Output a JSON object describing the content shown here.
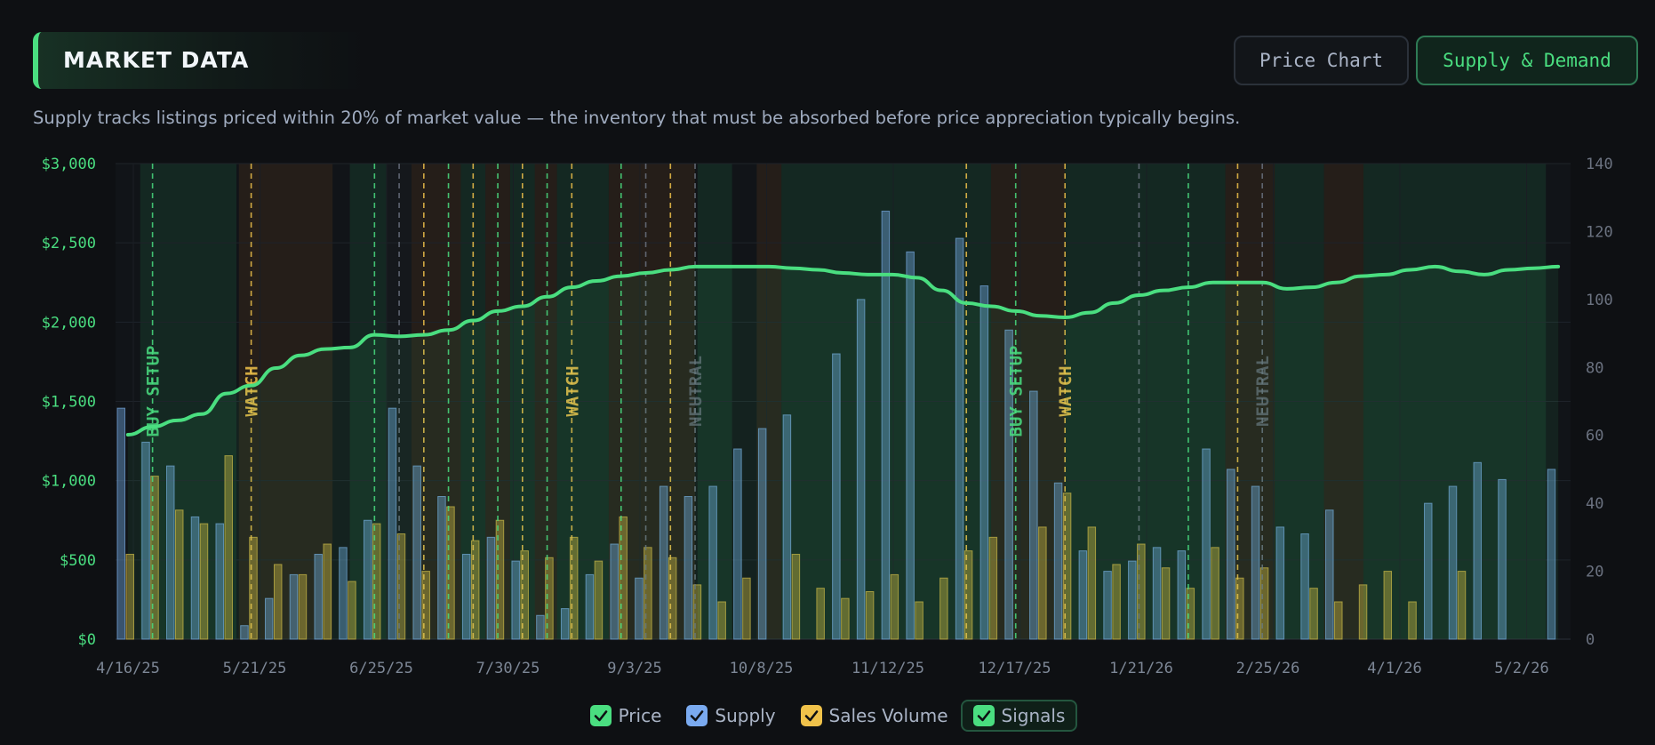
{
  "header": {
    "title": "MARKET DATA",
    "tabs": [
      {
        "label": "Price Chart",
        "active": false
      },
      {
        "label": "Supply & Demand",
        "active": true
      }
    ]
  },
  "description": "Supply tracks listings priced within 20% of market value — the inventory that must be absorbed before price appreciation typically begins.",
  "colors": {
    "price": "#4ade80",
    "supply": "#6aa0d8",
    "sales_volume": "#e8c040",
    "signal_buy": "#4ade80",
    "signal_watch": "#f0b429",
    "signal_neutral": "#6b7280",
    "background": "#0e1013"
  },
  "legend": {
    "items": [
      {
        "label": "Price",
        "checked": true,
        "icon": "check-icon"
      },
      {
        "label": "Supply",
        "checked": true,
        "icon": "check-icon"
      },
      {
        "label": "Sales Volume",
        "checked": true,
        "icon": "check-icon"
      },
      {
        "label": "Signals",
        "checked": true,
        "icon": "check-icon"
      }
    ]
  },
  "chart_data": {
    "type": "bar",
    "grid": true,
    "x_start": "4/16/25",
    "x_step_days": 7,
    "x_tick_labels": [
      "4/16/25",
      "5/21/25",
      "6/25/25",
      "7/30/25",
      "9/3/25",
      "10/8/25",
      "11/12/25",
      "12/17/25",
      "1/21/26",
      "2/25/26",
      "4/1/26",
      "5/2/26"
    ],
    "y_left": {
      "ticks": [
        "$0",
        "$500",
        "$1,000",
        "$1,500",
        "$2,000",
        "$2,500",
        "$3,000"
      ],
      "range": [
        0,
        3000
      ]
    },
    "y_right": {
      "ticks": [
        "0",
        "20",
        "40",
        "60",
        "80",
        "100",
        "120",
        "140"
      ],
      "range": [
        0,
        140
      ]
    },
    "series": [
      {
        "name": "Price",
        "type": "line",
        "axis": "left",
        "values": [
          1290,
          1340,
          1380,
          1420,
          1550,
          1600,
          1710,
          1790,
          1830,
          1840,
          1920,
          1910,
          1920,
          1950,
          2010,
          2070,
          2100,
          2160,
          2220,
          2260,
          2290,
          2310,
          2330,
          2350,
          2350,
          2350,
          2350,
          2340,
          2330,
          2310,
          2300,
          2300,
          2280,
          2200,
          2120,
          2100,
          2070,
          2040,
          2030,
          2060,
          2120,
          2170,
          2200,
          2220,
          2250,
          2250,
          2250,
          2210,
          2220,
          2250,
          2290,
          2300,
          2330,
          2350,
          2320,
          2300,
          2330,
          2340,
          2350
        ]
      },
      {
        "name": "Supply",
        "type": "bar",
        "axis": "right",
        "values": [
          68,
          58,
          51,
          36,
          34,
          4,
          12,
          19,
          25,
          27,
          35,
          68,
          51,
          42,
          25,
          30,
          23,
          7,
          9,
          19,
          28,
          18,
          45,
          42,
          45,
          56,
          62,
          66,
          null,
          84,
          100,
          126,
          114,
          null,
          118,
          104,
          91,
          73,
          46,
          26,
          20,
          23,
          27,
          26,
          56,
          50,
          45,
          33,
          31,
          38,
          null,
          null,
          null,
          40,
          45,
          52,
          47,
          null,
          50
        ]
      },
      {
        "name": "Sales Volume",
        "type": "bar",
        "axis": "right",
        "values": [
          25,
          48,
          38,
          34,
          54,
          30,
          22,
          19,
          28,
          17,
          34,
          31,
          20,
          39,
          29,
          35,
          26,
          24,
          30,
          23,
          36,
          27,
          24,
          16,
          11,
          18,
          null,
          25,
          15,
          12,
          14,
          19,
          11,
          18,
          26,
          30,
          null,
          33,
          43,
          33,
          22,
          28,
          21,
          15,
          27,
          18,
          21,
          null,
          15,
          11,
          16,
          20,
          11,
          null,
          20,
          null,
          null,
          null,
          null
        ]
      }
    ],
    "signals": [
      {
        "type": "buy",
        "label": "BUY SETUP"
      },
      {
        "type": "watch",
        "label": "WATCH"
      },
      {
        "type": "buy",
        "label": ""
      },
      {
        "type": "neutral",
        "label": ""
      },
      {
        "type": "watch",
        "label": ""
      },
      {
        "type": "buy",
        "label": ""
      },
      {
        "type": "watch",
        "label": ""
      },
      {
        "type": "buy",
        "label": ""
      },
      {
        "type": "watch",
        "label": ""
      },
      {
        "type": "buy",
        "label": ""
      },
      {
        "type": "watch",
        "label": "WATCH"
      },
      {
        "type": "buy",
        "label": ""
      },
      {
        "type": "neutral",
        "label": ""
      },
      {
        "type": "watch",
        "label": ""
      },
      {
        "type": "neutral",
        "label": "NEUTRAL"
      },
      {
        "type": "watch",
        "label": ""
      },
      {
        "type": "buy",
        "label": "BUY SETUP"
      },
      {
        "type": "watch",
        "label": "WATCH"
      },
      {
        "type": "neutral",
        "label": ""
      },
      {
        "type": "buy",
        "label": ""
      },
      {
        "type": "watch",
        "label": ""
      },
      {
        "type": "neutral",
        "label": "NEUTRAL"
      }
    ]
  }
}
